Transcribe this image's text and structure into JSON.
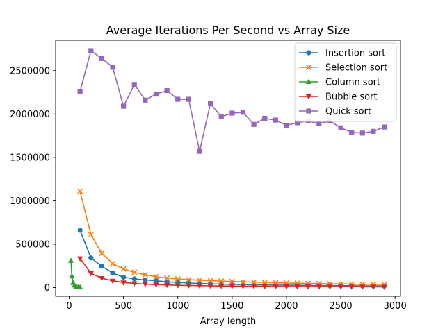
{
  "chart_data": {
    "type": "line",
    "title": "Average Iterations Per Second vs Array Size",
    "xlabel": "Array length",
    "ylabel": "",
    "xlim": [
      -125,
      3050
    ],
    "ylim": [
      -100000,
      2850000
    ],
    "xticks": [
      0,
      500,
      1000,
      1500,
      2000,
      2500,
      3000
    ],
    "xtick_labels": [
      "0",
      "500",
      "1000",
      "1500",
      "2000",
      "2500",
      "3000"
    ],
    "yticks": [
      0,
      500000,
      1000000,
      1500000,
      2000000,
      2500000
    ],
    "ytick_labels": [
      "0",
      "500000",
      "1000000",
      "1500000",
      "2000000",
      "2500000"
    ],
    "grid": false,
    "legend_position": "top-right",
    "series": [
      {
        "name": "Insertion sort",
        "color": "#1f77b4",
        "marker": "circle",
        "x": [
          100,
          200,
          300,
          400,
          500,
          600,
          700,
          800,
          900,
          1000,
          1100,
          1200,
          1300,
          1400,
          1500,
          1600,
          1700,
          1800,
          1900,
          2000,
          2100,
          2200,
          2300,
          2400,
          2500,
          2600,
          2700,
          2800,
          2900
        ],
        "y": [
          660000,
          342000,
          245000,
          168000,
          120000,
          100000,
          88000,
          78000,
          66000,
          60000,
          52000,
          48000,
          42000,
          40000,
          37000,
          35000,
          33000,
          31000,
          29000,
          27000,
          26000,
          25000,
          24000,
          23000,
          22000,
          21000,
          20000,
          19000,
          18000
        ]
      },
      {
        "name": "Selection sort",
        "color": "#ff7f0e",
        "marker": "x",
        "x": [
          100,
          200,
          300,
          400,
          500,
          600,
          700,
          800,
          900,
          1000,
          1100,
          1200,
          1300,
          1400,
          1500,
          1600,
          1700,
          1800,
          1900,
          2000,
          2100,
          2200,
          2300,
          2400,
          2500,
          2600,
          2700,
          2800,
          2900
        ],
        "y": [
          1110000,
          610000,
          395000,
          275000,
          215000,
          175000,
          148000,
          125000,
          110000,
          100000,
          92000,
          85000,
          80000,
          74000,
          70000,
          66000,
          62000,
          58000,
          55000,
          52000,
          50000,
          48000,
          46000,
          44000,
          42000,
          40000,
          38000,
          36000,
          35000
        ]
      },
      {
        "name": "Column sort",
        "color": "#2ca02c",
        "marker": "triangle-up",
        "x": [
          16,
          25,
          36,
          49,
          64,
          81,
          100
        ],
        "y": [
          310000,
          130000,
          55000,
          25000,
          12000,
          6000,
          3000
        ]
      },
      {
        "name": "Bubble sort",
        "color": "#d62728",
        "marker": "triangle-down",
        "x": [
          100,
          200,
          300,
          400,
          500,
          600,
          700,
          800,
          900,
          1000,
          1100,
          1200,
          1300,
          1400,
          1500,
          1600,
          1700,
          1800,
          1900,
          2000,
          2100,
          2200,
          2300,
          2400,
          2500,
          2600,
          2700,
          2800,
          2900
        ],
        "y": [
          335000,
          165000,
          108000,
          78000,
          58000,
          48000,
          40000,
          34000,
          30000,
          26000,
          24000,
          22000,
          20000,
          18000,
          17000,
          16000,
          15000,
          14000,
          13000,
          12500,
          12000,
          11500,
          11000,
          10500,
          10000,
          9500,
          9000,
          8500,
          8000
        ]
      },
      {
        "name": "Quick sort",
        "color": "#9467bd",
        "marker": "square",
        "x": [
          100,
          200,
          300,
          400,
          500,
          600,
          700,
          800,
          900,
          1000,
          1100,
          1200,
          1300,
          1400,
          1500,
          1600,
          1700,
          1800,
          1900,
          2000,
          2100,
          2200,
          2300,
          2400,
          2500,
          2600,
          2700,
          2800,
          2900
        ],
        "y": [
          2260000,
          2730000,
          2640000,
          2540000,
          2090000,
          2340000,
          2160000,
          2230000,
          2270000,
          2170000,
          2170000,
          1570000,
          2120000,
          1970000,
          2010000,
          2020000,
          1880000,
          1950000,
          1930000,
          1870000,
          1900000,
          1920000,
          1890000,
          1920000,
          1840000,
          1790000,
          1780000,
          1800000,
          1850000
        ]
      }
    ]
  }
}
